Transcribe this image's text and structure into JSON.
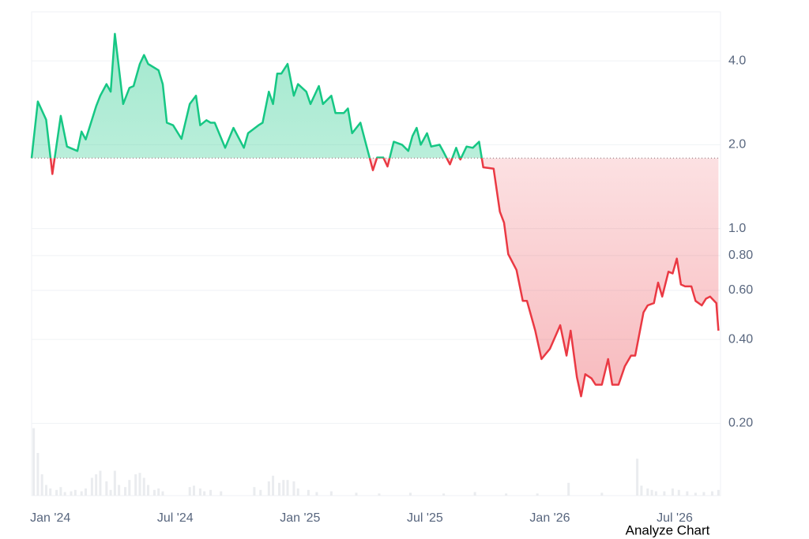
{
  "chart_data": {
    "type": "line",
    "log_scale": true,
    "grid": true,
    "up_color": "#16c784",
    "down_color": "#ea3943",
    "baseline": 1.79,
    "xlim": [
      -0.9,
      32.2
    ],
    "ylim": [
      0.11,
      6.0
    ],
    "xticks": [
      {
        "value": 0,
        "label": "Jan '24"
      },
      {
        "value": 6,
        "label": "Jul '24"
      },
      {
        "value": 12,
        "label": "Jan '25"
      },
      {
        "value": 18,
        "label": "Jul '25"
      },
      {
        "value": 24,
        "label": "Jan '26"
      },
      {
        "value": 30,
        "label": "Jul '26"
      }
    ],
    "yticks": [
      {
        "value": 4,
        "label": "4.0"
      },
      {
        "value": 2,
        "label": "2.0"
      },
      {
        "value": 1,
        "label": "1.0"
      },
      {
        "value": 0.8,
        "label": "0.80"
      },
      {
        "value": 0.6,
        "label": "0.60"
      },
      {
        "value": 0.4,
        "label": "0.40"
      },
      {
        "value": 0.2,
        "label": "0.20"
      }
    ],
    "x": [
      -0.9,
      -0.6,
      -0.2,
      0.1,
      0.5,
      0.8,
      1.3,
      1.5,
      1.7,
      2.2,
      2.4,
      2.7,
      2.9,
      3.1,
      3.5,
      3.8,
      4.0,
      4.3,
      4.5,
      4.7,
      5.2,
      5.4,
      5.6,
      5.9,
      6.3,
      6.7,
      7.0,
      7.2,
      7.5,
      7.7,
      7.9,
      8.4,
      8.8,
      9.3,
      9.5,
      10.0,
      10.2,
      10.5,
      10.7,
      10.9,
      11.1,
      11.4,
      11.7,
      11.9,
      12.3,
      12.5,
      12.9,
      13.1,
      13.5,
      13.7,
      14.1,
      14.3,
      14.5,
      14.9,
      15.1,
      15.5,
      15.7,
      16.0,
      16.2,
      16.5,
      16.9,
      17.2,
      17.4,
      17.6,
      17.8,
      18.1,
      18.3,
      18.7,
      18.9,
      19.2,
      19.5,
      19.7,
      20.0,
      20.3,
      20.6,
      20.8,
      21.3,
      21.6,
      21.8,
      22.0,
      22.4,
      22.7,
      22.9,
      23.3,
      23.6,
      24.0,
      24.5,
      24.8,
      25.0,
      25.3,
      25.5,
      25.7,
      26.0,
      26.2,
      26.5,
      26.8,
      27.0,
      27.3,
      27.6,
      27.9,
      28.1,
      28.5,
      28.7,
      29.0,
      29.2,
      29.4,
      29.7,
      29.9,
      30.1,
      30.3,
      30.5,
      30.8,
      31.0,
      31.3,
      31.5,
      31.7,
      32.0,
      32.1
    ],
    "values": [
      1.79,
      2.86,
      2.46,
      1.57,
      2.54,
      1.97,
      1.9,
      2.23,
      2.09,
      2.75,
      3.0,
      3.3,
      3.1,
      5.0,
      2.8,
      3.2,
      3.25,
      3.9,
      4.2,
      3.9,
      3.7,
      3.3,
      2.4,
      2.35,
      2.1,
      2.8,
      3.0,
      2.35,
      2.45,
      2.4,
      2.4,
      1.95,
      2.3,
      1.95,
      2.2,
      2.35,
      2.4,
      3.1,
      2.8,
      3.6,
      3.6,
      3.9,
      3.0,
      3.3,
      3.1,
      2.8,
      3.25,
      2.8,
      3.0,
      2.6,
      2.6,
      2.7,
      2.2,
      2.4,
      2.1,
      1.62,
      1.8,
      1.8,
      1.67,
      2.05,
      2.0,
      1.9,
      2.15,
      2.3,
      2.0,
      2.2,
      1.97,
      2.0,
      1.88,
      1.7,
      1.95,
      1.77,
      1.97,
      1.95,
      2.05,
      1.66,
      1.64,
      1.15,
      1.05,
      0.81,
      0.71,
      0.55,
      0.55,
      0.43,
      0.34,
      0.37,
      0.45,
      0.35,
      0.43,
      0.293,
      0.25,
      0.3,
      0.29,
      0.275,
      0.275,
      0.34,
      0.275,
      0.275,
      0.32,
      0.35,
      0.35,
      0.5,
      0.53,
      0.54,
      0.64,
      0.57,
      0.7,
      0.69,
      0.78,
      0.63,
      0.62,
      0.62,
      0.55,
      0.53,
      0.56,
      0.57,
      0.54,
      0.43
    ],
    "volume": {
      "ylim": [
        0,
        100
      ],
      "x": [
        -0.8,
        -0.6,
        -0.4,
        -0.2,
        0,
        0.3,
        0.5,
        0.7,
        1.0,
        1.2,
        1.5,
        1.7,
        2.0,
        2.2,
        2.4,
        2.7,
        2.9,
        3.1,
        3.3,
        3.6,
        3.8,
        4.1,
        4.3,
        4.5,
        4.7,
        5.0,
        5.2,
        5.4,
        6.7,
        6.9,
        7.2,
        7.4,
        7.7,
        8.2,
        9.8,
        10.1,
        10.5,
        10.7,
        11.0,
        11.2,
        11.4,
        11.7,
        11.9,
        12.4,
        12.8,
        13.5,
        14.7,
        15.8,
        17.3,
        18.9,
        20.4,
        21.9,
        23.4,
        24.9,
        26.5,
        28.2,
        28.4,
        28.7,
        28.9,
        29.1,
        29.5,
        29.9,
        30.2,
        30.6,
        31.0,
        31.4,
        31.8,
        32.1
      ],
      "values": [
        95,
        60,
        30,
        15,
        10,
        8,
        12,
        5,
        6,
        8,
        6,
        10,
        25,
        30,
        35,
        20,
        8,
        35,
        15,
        12,
        22,
        30,
        32,
        25,
        15,
        8,
        10,
        6,
        12,
        14,
        10,
        6,
        8,
        6,
        12,
        8,
        20,
        28,
        18,
        22,
        22,
        20,
        10,
        8,
        5,
        6,
        4,
        3,
        4,
        3,
        5,
        3,
        3,
        18,
        4,
        52,
        14,
        10,
        8,
        6,
        6,
        10,
        8,
        6,
        4,
        5,
        6,
        8
      ]
    },
    "button": "Analyze Chart"
  }
}
